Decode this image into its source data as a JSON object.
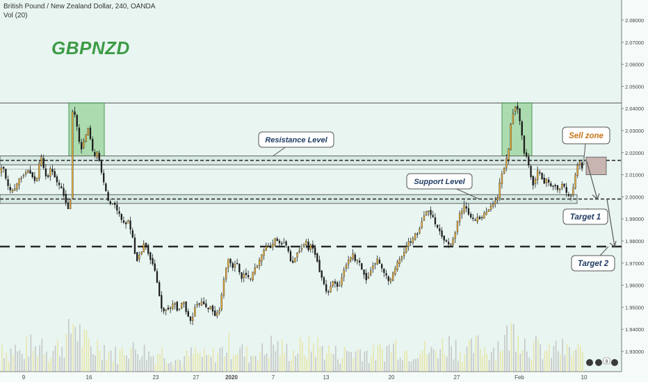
{
  "header": {
    "symbol_line": "British Pound / New Zealand Dollar, 240, OANDA",
    "volume_line": "Vol (20)"
  },
  "chart_title": "GBPNZD",
  "chart_data": {
    "type": "candlestick",
    "title": "GBPNZD",
    "instrument": "British Pound / New Zealand Dollar",
    "timeframe": "240",
    "source": "OANDA",
    "y_axis": {
      "position": "right",
      "ticks": [
        "2.08000",
        "2.07000",
        "2.06000",
        "2.05000",
        "2.04000",
        "2.03000",
        "2.02000",
        "2.01000",
        "2.00000",
        "1.99000",
        "1.98000",
        "1.97000",
        "1.96000",
        "1.95000",
        "1.94000",
        "1.93000"
      ],
      "range": [
        1.928,
        2.09
      ]
    },
    "x_axis": {
      "ticks": [
        "9",
        "16",
        "23",
        "27",
        "2020",
        "7",
        "13",
        "20",
        "27",
        "Feb",
        "10"
      ]
    },
    "levels": {
      "resistance": 2.0162,
      "support": 1.999,
      "target_1": 1.999,
      "target_2": 1.9775,
      "box_top": 2.0425
    },
    "path_points": [
      [
        0,
        2.01
      ],
      [
        6,
        2.015
      ],
      [
        12,
        2.006
      ],
      [
        18,
        2.002
      ],
      [
        24,
        2.004
      ],
      [
        30,
        2.008
      ],
      [
        36,
        2.01
      ],
      [
        42,
        2.012
      ],
      [
        48,
        2.01
      ],
      [
        54,
        2.006
      ],
      [
        58,
        2.014
      ],
      [
        62,
        2.018
      ],
      [
        66,
        2.011
      ],
      [
        70,
        2.008
      ],
      [
        75,
        2.013
      ],
      [
        80,
        2.01
      ],
      [
        85,
        2.006
      ],
      [
        90,
        2.004
      ],
      [
        95,
        2.0
      ],
      [
        100,
        1.994
      ],
      [
        104,
        2.0
      ],
      [
        106,
        2.039
      ],
      [
        110,
        2.037
      ],
      [
        114,
        2.03
      ],
      [
        118,
        2.02
      ],
      [
        122,
        2.025
      ],
      [
        126,
        2.028
      ],
      [
        130,
        2.032
      ],
      [
        134,
        2.022
      ],
      [
        138,
        2.018
      ],
      [
        142,
        2.02
      ],
      [
        146,
        2.015
      ],
      [
        150,
        2.008
      ],
      [
        154,
        2.003
      ],
      [
        158,
        1.998
      ],
      [
        162,
        1.996
      ],
      [
        166,
        1.998
      ],
      [
        170,
        1.994
      ],
      [
        174,
        1.992
      ],
      [
        178,
        1.989
      ],
      [
        182,
        1.987
      ],
      [
        186,
        1.99
      ],
      [
        190,
        1.985
      ],
      [
        194,
        1.98
      ],
      [
        198,
        1.97
      ],
      [
        202,
        1.974
      ],
      [
        206,
        1.975
      ],
      [
        210,
        1.98
      ],
      [
        214,
        1.976
      ],
      [
        218,
        1.972
      ],
      [
        222,
        1.97
      ],
      [
        226,
        1.965
      ],
      [
        230,
        1.958
      ],
      [
        234,
        1.95
      ],
      [
        238,
        1.948
      ],
      [
        242,
        1.95
      ],
      [
        246,
        1.949
      ],
      [
        250,
        1.951
      ],
      [
        254,
        1.952
      ],
      [
        258,
        1.948
      ],
      [
        262,
        1.951
      ],
      [
        266,
        1.953
      ],
      [
        270,
        1.948
      ],
      [
        274,
        1.945
      ],
      [
        278,
        1.943
      ],
      [
        282,
        1.95
      ],
      [
        286,
        1.952
      ],
      [
        290,
        1.951
      ],
      [
        294,
        1.953
      ],
      [
        298,
        1.95
      ],
      [
        302,
        1.949
      ],
      [
        306,
        1.951
      ],
      [
        310,
        1.946
      ],
      [
        314,
        1.947
      ],
      [
        318,
        1.949
      ],
      [
        322,
        1.958
      ],
      [
        326,
        1.966
      ],
      [
        330,
        1.972
      ],
      [
        334,
        1.97
      ],
      [
        338,
        1.967
      ],
      [
        342,
        1.972
      ],
      [
        346,
        1.966
      ],
      [
        350,
        1.963
      ],
      [
        354,
        1.966
      ],
      [
        358,
        1.964
      ],
      [
        362,
        1.962
      ],
      [
        366,
        1.966
      ],
      [
        370,
        1.968
      ],
      [
        374,
        1.97
      ],
      [
        378,
        1.973
      ],
      [
        382,
        1.976
      ],
      [
        386,
        1.978
      ],
      [
        390,
        1.977
      ],
      [
        394,
        1.978
      ],
      [
        398,
        1.981
      ],
      [
        402,
        1.98
      ],
      [
        406,
        1.978
      ],
      [
        410,
        1.98
      ],
      [
        414,
        1.978
      ],
      [
        418,
        1.974
      ],
      [
        422,
        1.969
      ],
      [
        426,
        1.972
      ],
      [
        430,
        1.975
      ],
      [
        434,
        1.976
      ],
      [
        438,
        1.978
      ],
      [
        442,
        1.98
      ],
      [
        446,
        1.976
      ],
      [
        450,
        1.979
      ],
      [
        454,
        1.975
      ],
      [
        458,
        1.972
      ],
      [
        462,
        1.966
      ],
      [
        466,
        1.963
      ],
      [
        470,
        1.958
      ],
      [
        474,
        1.956
      ],
      [
        478,
        1.96
      ],
      [
        482,
        1.962
      ],
      [
        486,
        1.96
      ],
      [
        490,
        1.959
      ],
      [
        494,
        1.964
      ],
      [
        498,
        1.968
      ],
      [
        502,
        1.971
      ],
      [
        506,
        1.972
      ],
      [
        510,
        1.974
      ],
      [
        514,
        1.97
      ],
      [
        518,
        1.972
      ],
      [
        522,
        1.967
      ],
      [
        526,
        1.965
      ],
      [
        530,
        1.962
      ],
      [
        534,
        1.966
      ],
      [
        538,
        1.969
      ],
      [
        542,
        1.97
      ],
      [
        546,
        1.972
      ],
      [
        550,
        1.968
      ],
      [
        554,
        1.966
      ],
      [
        558,
        1.964
      ],
      [
        562,
        1.961
      ],
      [
        566,
        1.964
      ],
      [
        570,
        1.967
      ],
      [
        574,
        1.97
      ],
      [
        578,
        1.972
      ],
      [
        582,
        1.974
      ],
      [
        586,
        1.977
      ],
      [
        590,
        1.98
      ],
      [
        594,
        1.979
      ],
      [
        598,
        1.983
      ],
      [
        602,
        1.983
      ],
      [
        606,
        1.986
      ],
      [
        610,
        1.99
      ],
      [
        614,
        1.993
      ],
      [
        618,
        1.994
      ],
      [
        622,
        1.992
      ],
      [
        626,
        1.99
      ],
      [
        630,
        1.986
      ],
      [
        634,
        1.985
      ],
      [
        638,
        1.982
      ],
      [
        642,
        1.98
      ],
      [
        646,
        1.979
      ],
      [
        650,
        1.978
      ],
      [
        654,
        1.981
      ],
      [
        658,
        1.985
      ],
      [
        662,
        1.992
      ],
      [
        666,
        1.993
      ],
      [
        670,
        1.996
      ],
      [
        674,
        1.994
      ],
      [
        678,
        1.991
      ],
      [
        682,
        1.99
      ],
      [
        686,
        1.989
      ],
      [
        690,
        1.991
      ],
      [
        694,
        1.99
      ],
      [
        698,
        1.992
      ],
      [
        702,
        1.993
      ],
      [
        706,
        1.995
      ],
      [
        710,
        1.996
      ],
      [
        714,
        1.998
      ],
      [
        718,
        2.0
      ],
      [
        722,
        2.008
      ],
      [
        726,
        2.012
      ],
      [
        730,
        2.016
      ],
      [
        734,
        2.022
      ],
      [
        738,
        2.036
      ],
      [
        742,
        2.04
      ],
      [
        745,
        2.042
      ],
      [
        748,
        2.038
      ],
      [
        752,
        2.03
      ],
      [
        756,
        2.02
      ],
      [
        760,
        2.018
      ],
      [
        764,
        2.012
      ],
      [
        768,
        2.005
      ],
      [
        772,
        2.008
      ],
      [
        776,
        2.012
      ],
      [
        780,
        2.01
      ],
      [
        784,
        2.006
      ],
      [
        788,
        2.008
      ],
      [
        792,
        2.006
      ],
      [
        796,
        2.004
      ],
      [
        800,
        2.006
      ],
      [
        804,
        2.003
      ],
      [
        808,
        2.004
      ],
      [
        812,
        2.007
      ],
      [
        816,
        2.002
      ],
      [
        820,
        2.0
      ],
      [
        824,
        2.001
      ],
      [
        828,
        2.006
      ],
      [
        832,
        2.014
      ],
      [
        836,
        2.016
      ],
      [
        840,
        2.012
      ]
    ],
    "volume_points": [
      [
        0,
        0.55
      ],
      [
        10,
        0.35
      ],
      [
        20,
        0.45
      ],
      [
        30,
        0.3
      ],
      [
        40,
        0.5
      ],
      [
        50,
        0.4
      ],
      [
        60,
        0.6
      ],
      [
        70,
        0.35
      ],
      [
        80,
        0.45
      ],
      [
        90,
        0.5
      ],
      [
        100,
        0.7
      ],
      [
        105,
        1.0
      ],
      [
        110,
        0.8
      ],
      [
        118,
        0.6
      ],
      [
        126,
        0.5
      ],
      [
        134,
        0.4
      ],
      [
        142,
        0.55
      ],
      [
        150,
        0.45
      ],
      [
        160,
        0.35
      ],
      [
        170,
        0.3
      ],
      [
        180,
        0.5
      ],
      [
        190,
        0.4
      ],
      [
        200,
        0.45
      ],
      [
        210,
        0.35
      ],
      [
        220,
        0.3
      ],
      [
        230,
        0.4
      ],
      [
        240,
        0.3
      ],
      [
        250,
        0.25
      ],
      [
        260,
        0.2
      ],
      [
        270,
        0.3
      ],
      [
        280,
        0.35
      ],
      [
        290,
        0.3
      ],
      [
        300,
        0.25
      ],
      [
        310,
        0.35
      ],
      [
        320,
        0.4
      ],
      [
        330,
        0.5
      ],
      [
        340,
        0.45
      ],
      [
        350,
        0.35
      ],
      [
        360,
        0.3
      ],
      [
        370,
        0.4
      ],
      [
        380,
        0.35
      ],
      [
        390,
        0.5
      ],
      [
        400,
        0.45
      ],
      [
        410,
        0.4
      ],
      [
        420,
        0.35
      ],
      [
        430,
        0.45
      ],
      [
        440,
        0.4
      ],
      [
        450,
        0.5
      ],
      [
        460,
        0.45
      ],
      [
        470,
        0.4
      ],
      [
        480,
        0.35
      ],
      [
        490,
        0.3
      ],
      [
        500,
        0.4
      ],
      [
        510,
        0.35
      ],
      [
        520,
        0.45
      ],
      [
        530,
        0.3
      ],
      [
        540,
        0.35
      ],
      [
        550,
        0.4
      ],
      [
        560,
        0.45
      ],
      [
        570,
        0.5
      ],
      [
        580,
        0.4
      ],
      [
        590,
        0.35
      ],
      [
        600,
        0.45
      ],
      [
        610,
        0.4
      ],
      [
        620,
        0.35
      ],
      [
        630,
        0.45
      ],
      [
        640,
        0.5
      ],
      [
        650,
        0.55
      ],
      [
        660,
        0.4
      ],
      [
        670,
        0.35
      ],
      [
        680,
        0.45
      ],
      [
        690,
        0.5
      ],
      [
        700,
        0.4
      ],
      [
        710,
        0.45
      ],
      [
        720,
        0.55
      ],
      [
        730,
        0.65
      ],
      [
        740,
        0.8
      ],
      [
        745,
        0.9
      ],
      [
        750,
        0.6
      ],
      [
        760,
        0.5
      ],
      [
        770,
        0.45
      ],
      [
        780,
        0.4
      ],
      [
        790,
        0.35
      ],
      [
        800,
        0.45
      ],
      [
        810,
        0.4
      ],
      [
        820,
        0.35
      ],
      [
        830,
        0.4
      ],
      [
        838,
        0.3
      ]
    ]
  },
  "annotations": {
    "resistance_label": "Resistance Level",
    "support_label": "Support Level",
    "sell_zone_label": "Sell zone",
    "target1_label": "Target 1",
    "target2_label": "Target 2"
  },
  "widget_badge": "9",
  "colors": {
    "background": "#e8f5f1",
    "bull": "#f0b23a",
    "bear": "#1c1c1c",
    "box_fill": "#a6d9a8",
    "box_stroke": "#3d8c45",
    "title": "#3d9b46",
    "dashed": "#333333",
    "label_text_blue": "#1f3b63",
    "label_text_orange": "#c7761a"
  }
}
